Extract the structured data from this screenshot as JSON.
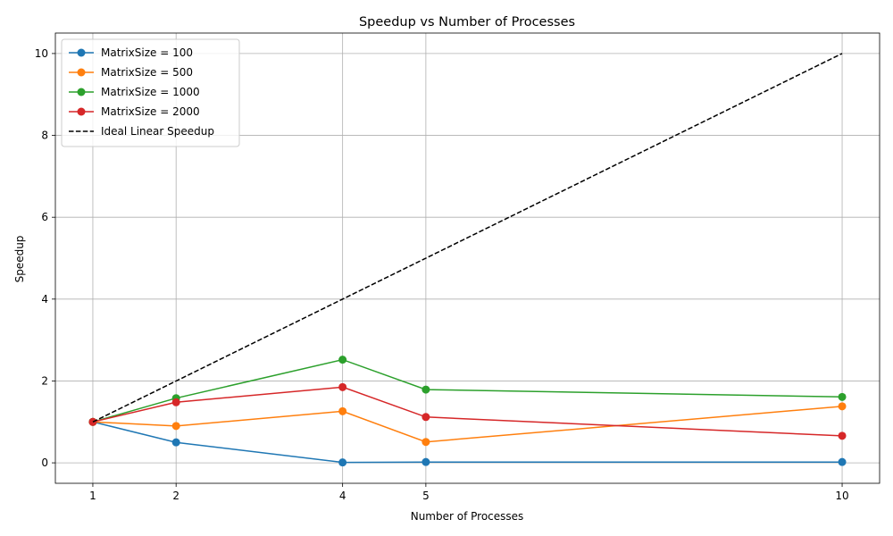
{
  "chart_data": {
    "type": "line",
    "title": "Speedup vs Number of Processes",
    "xlabel": "Number of Processes",
    "ylabel": "Speedup",
    "x": [
      1,
      2,
      4,
      5,
      10
    ],
    "x_ticks": [
      "1",
      "2",
      "4",
      "5",
      "10"
    ],
    "xlim": [
      0.55,
      10.45
    ],
    "ylim": [
      -0.5,
      10.5
    ],
    "y_ticks": [
      0,
      2,
      4,
      6,
      8,
      10
    ],
    "grid": true,
    "legend_position": "top-left",
    "series": [
      {
        "name": "MatrixSize = 100",
        "color": "#1f77b4",
        "style": "solid",
        "marker": "circle",
        "values": [
          1.0,
          0.5,
          0.01,
          0.02,
          0.02
        ]
      },
      {
        "name": "MatrixSize = 500",
        "color": "#ff7f0e",
        "style": "solid",
        "marker": "circle",
        "values": [
          1.0,
          0.9,
          1.26,
          0.51,
          1.38
        ]
      },
      {
        "name": "MatrixSize = 1000",
        "color": "#2ca02c",
        "style": "solid",
        "marker": "circle",
        "values": [
          1.0,
          1.58,
          2.52,
          1.79,
          1.61
        ]
      },
      {
        "name": "MatrixSize = 2000",
        "color": "#d62728",
        "style": "solid",
        "marker": "circle",
        "values": [
          1.0,
          1.48,
          1.85,
          1.12,
          0.66
        ]
      },
      {
        "name": "Ideal Linear Speedup",
        "color": "#000000",
        "style": "dashed",
        "marker": "none",
        "values": [
          1,
          2,
          4,
          5,
          10
        ]
      }
    ]
  }
}
